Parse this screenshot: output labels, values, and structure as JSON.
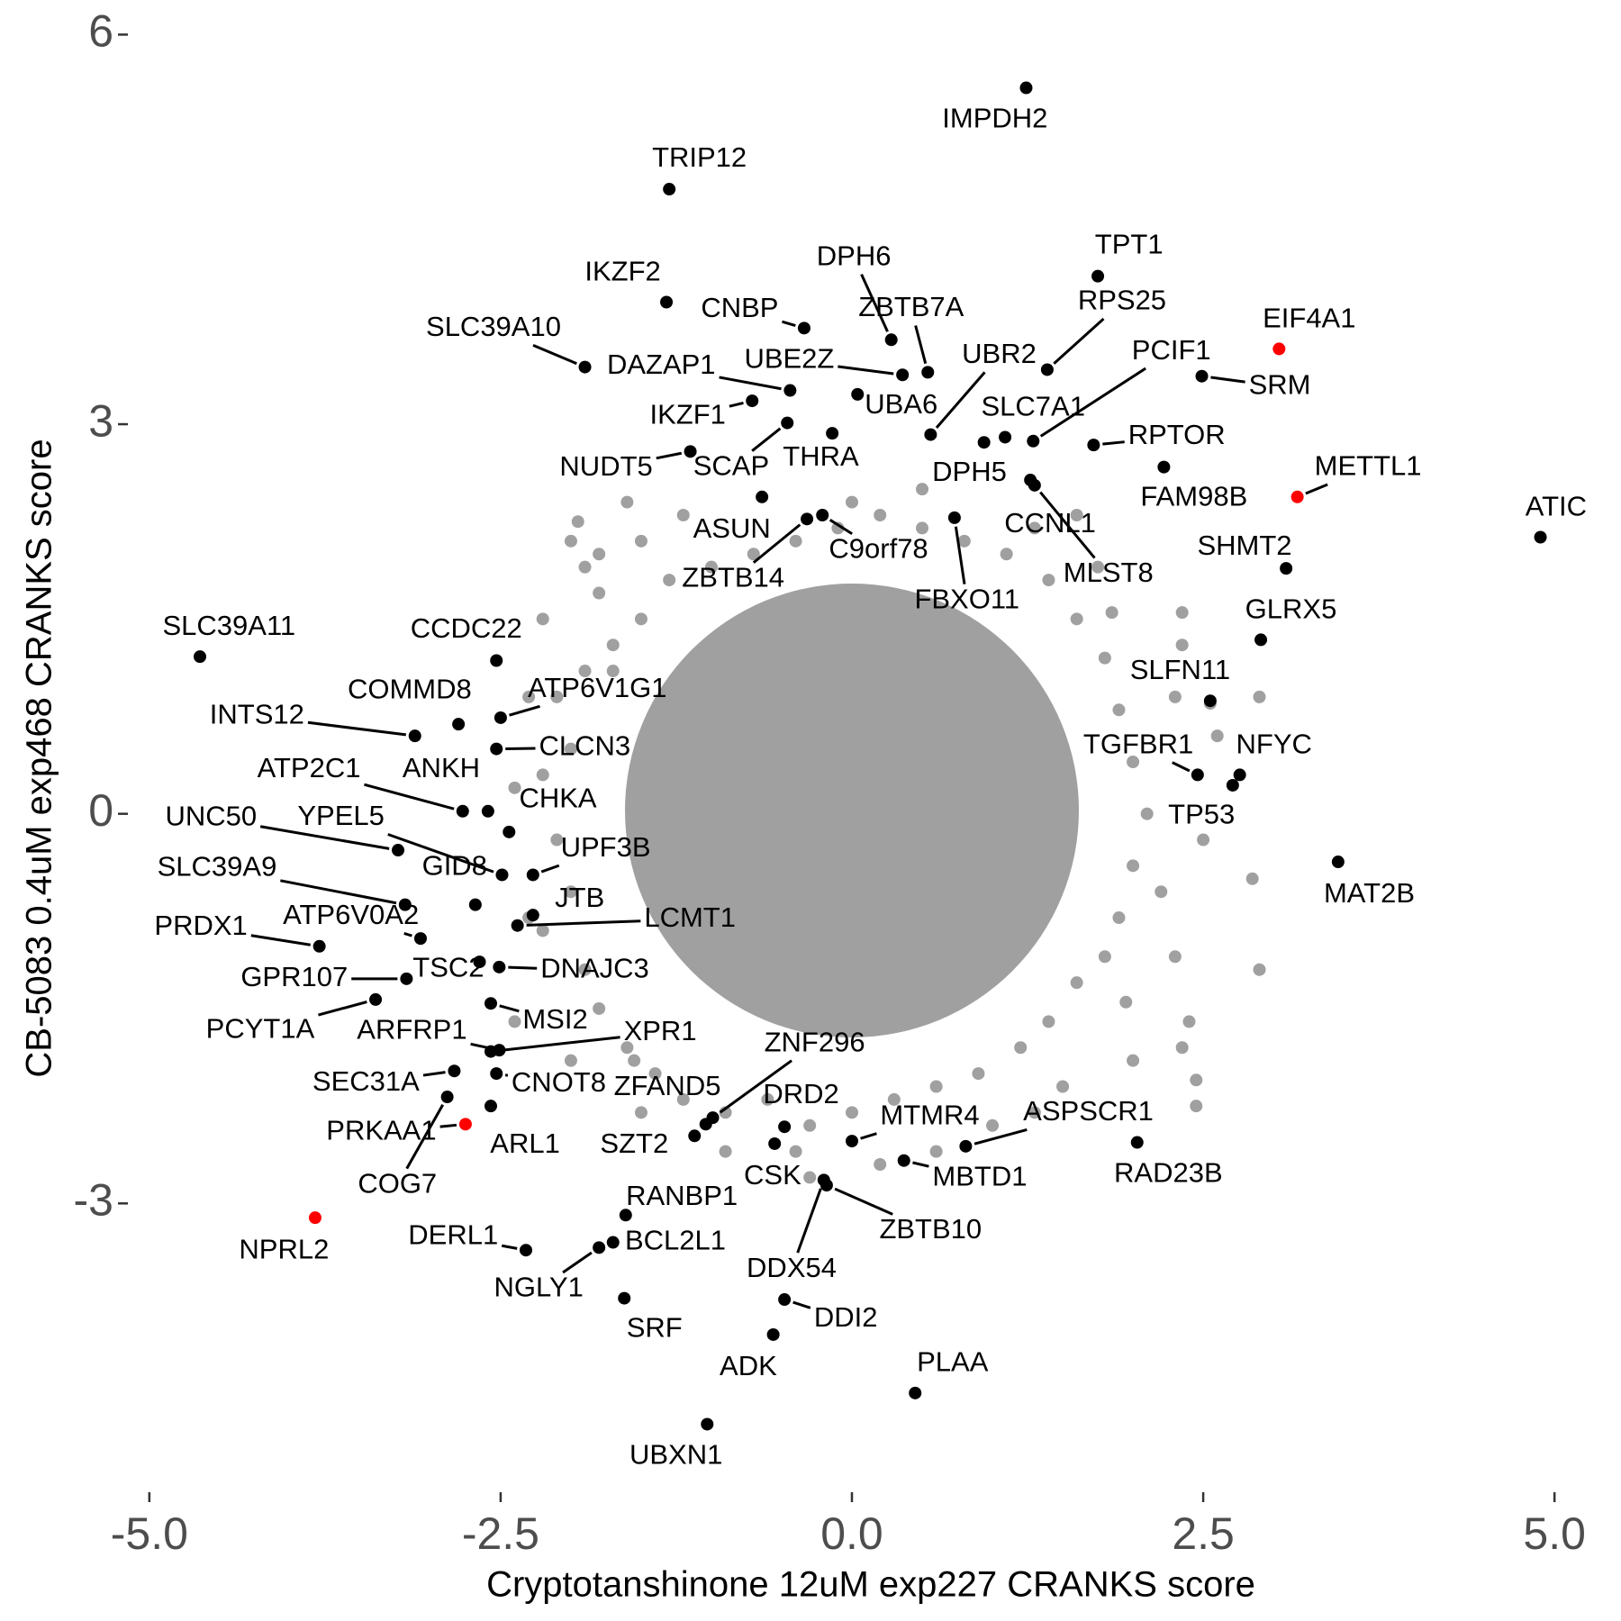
{
  "chart_data": {
    "type": "scatter",
    "x_label": "Cryptotanshinone 12uM exp227 CRANKS score",
    "y_label": "CB-5083 0.4uM exp468 CRANKS score",
    "xlim": [
      -5.14,
      5.14
    ],
    "ylim": [
      -5.21,
      6.1
    ],
    "xticks": [
      {
        "value": -5,
        "label": "-5.0"
      },
      {
        "value": -2.5,
        "label": "-2.5"
      },
      {
        "value": 0,
        "label": "0.0"
      },
      {
        "value": 2.5,
        "label": "2.5"
      },
      {
        "value": 5,
        "label": "5.0"
      }
    ],
    "yticks": [
      -3,
      0,
      3,
      6
    ],
    "grid": false,
    "background_points": {
      "color": "#a0a0a0",
      "x": [
        -1.9,
        -1.8,
        -1.5,
        -1.7,
        -1.9,
        -2.1,
        -2.0,
        -2.2,
        -2.1,
        -2.0,
        -2.2,
        -1.9,
        -1.8,
        -1.6,
        -1.4,
        -1.2,
        -0.9,
        -0.6,
        -0.3,
        0.0,
        0.3,
        0.6,
        0.9,
        1.2,
        1.4,
        1.6,
        1.8,
        1.9,
        2.0,
        2.1,
        2.0,
        1.9,
        1.8,
        1.6,
        1.4,
        1.1,
        0.8,
        0.5,
        0.2,
        -0.1,
        -0.4,
        -0.7,
        -1.0,
        -1.3,
        -1.8,
        -1.95,
        -1.5,
        1.3,
        1.85,
        2.35,
        2.3,
        2.6,
        2.2,
        2.3,
        2.5,
        2.4,
        2.35,
        2.45,
        2.0,
        1.5,
        1.0,
        0.6,
        0.2,
        -0.4,
        -0.9,
        -1.5,
        -2.0,
        -2.4,
        -2.3,
        -2.4,
        -2.3,
        -2.2,
        -2.0,
        -1.6,
        -1.2,
        0.5,
        0.0,
        1.6,
        1.75,
        2.35,
        2.55,
        2.9,
        2.85,
        2.9,
        2.45,
        -1.55,
        -0.3,
        1.3,
        -1.7,
        1.95
      ],
      "y": [
        1.9,
        2.0,
        1.5,
        1.3,
        1.1,
        0.9,
        0.5,
        0.3,
        -0.2,
        -0.6,
        -0.9,
        -1.2,
        -1.5,
        -1.8,
        -2.0,
        -2.2,
        -2.3,
        -2.2,
        -2.4,
        -2.3,
        -2.2,
        -2.1,
        -2.0,
        -1.8,
        -1.6,
        -1.3,
        -1.1,
        -0.8,
        -0.4,
        0.0,
        0.4,
        0.8,
        1.2,
        1.5,
        1.8,
        2.0,
        2.1,
        2.2,
        2.3,
        2.2,
        2.1,
        2.0,
        1.9,
        1.8,
        1.7,
        2.25,
        2.1,
        2.2,
        1.55,
        1.3,
        0.9,
        0.6,
        -0.6,
        -1.1,
        -0.2,
        -1.6,
        -1.8,
        -2.25,
        -1.9,
        -2.1,
        -2.4,
        -2.6,
        -2.7,
        -2.6,
        -2.6,
        -2.3,
        -1.9,
        -1.6,
        -0.8,
        0.2,
        0.9,
        1.5,
        2.1,
        2.4,
        2.3,
        2.5,
        2.4,
        2.3,
        1.9,
        1.55,
        0.85,
        0.9,
        -0.5,
        -1.2,
        -2.05,
        -1.9,
        -2.8,
        -2.3,
        1.1,
        -1.45
      ]
    },
    "points": [
      {
        "label": "IMPDH2",
        "x": 1.24,
        "y": 5.59,
        "color": "#000000"
      },
      {
        "label": "TRIP12",
        "x": -1.3,
        "y": 4.81,
        "color": "#000000"
      },
      {
        "label": "TPT1",
        "x": 1.75,
        "y": 4.14,
        "color": "#000000"
      },
      {
        "label": "IKZF2",
        "x": -1.32,
        "y": 3.94,
        "color": "#000000"
      },
      {
        "label": "CNBP",
        "x": -0.34,
        "y": 3.74,
        "color": "#000000"
      },
      {
        "label": "DPH6",
        "x": 0.28,
        "y": 3.65,
        "color": "#000000"
      },
      {
        "label": "ZBTB7A",
        "x": 0.54,
        "y": 3.4,
        "color": "#000000"
      },
      {
        "label": "RPS25",
        "x": 1.39,
        "y": 3.42,
        "color": "#000000"
      },
      {
        "label": "SLC39A10",
        "x": -1.9,
        "y": 3.44,
        "color": "#000000"
      },
      {
        "label": "EIF4A1",
        "x": 3.04,
        "y": 3.58,
        "color": "#ff0000"
      },
      {
        "label": "UBR2",
        "x": 0.56,
        "y": 2.92,
        "color": "#000000"
      },
      {
        "label": "UBE2Z",
        "x": 0.36,
        "y": 3.38,
        "color": "#000000"
      },
      {
        "label": "DAZAP1",
        "x": -0.44,
        "y": 3.26,
        "color": "#000000"
      },
      {
        "label": "PCIF1",
        "x": 1.29,
        "y": 2.87,
        "color": "#000000"
      },
      {
        "label": "SRM",
        "x": 2.49,
        "y": 3.37,
        "color": "#000000"
      },
      {
        "label": "IKZF1",
        "x": -0.71,
        "y": 3.18,
        "color": "#000000"
      },
      {
        "label": "UBA6",
        "x": 0.04,
        "y": 3.23,
        "color": "#000000"
      },
      {
        "label": "SLC7A1",
        "x": 1.09,
        "y": 2.9,
        "color": "#000000"
      },
      {
        "label": "RPTOR",
        "x": 1.72,
        "y": 2.84,
        "color": "#000000"
      },
      {
        "label": "NUDT5",
        "x": -1.15,
        "y": 2.79,
        "color": "#000000"
      },
      {
        "label": "SCAP",
        "x": -0.46,
        "y": 3.01,
        "color": "#000000"
      },
      {
        "label": "THRA",
        "x": -0.14,
        "y": 2.93,
        "color": "#000000"
      },
      {
        "label": "DPH5",
        "x": 0.94,
        "y": 2.86,
        "color": "#000000"
      },
      {
        "label": "FAM98B",
        "x": 2.22,
        "y": 2.67,
        "color": "#000000"
      },
      {
        "label": "METTL1",
        "x": 3.17,
        "y": 2.44,
        "color": "#ff0000"
      },
      {
        "label": "ATIC",
        "x": 4.9,
        "y": 2.13,
        "color": "#000000"
      },
      {
        "label": "CCNL1",
        "x": 1.27,
        "y": 2.57,
        "color": "#000000"
      },
      {
        "label": "ASUN",
        "x": -0.64,
        "y": 2.44,
        "color": "#000000"
      },
      {
        "label": "C9orf78",
        "x": -0.21,
        "y": 2.3,
        "color": "#000000"
      },
      {
        "label": "FBXO11",
        "x": 0.73,
        "y": 2.28,
        "color": "#000000"
      },
      {
        "label": "MLST8",
        "x": 1.3,
        "y": 2.53,
        "color": "#000000"
      },
      {
        "label": "ZBTB14",
        "x": -0.32,
        "y": 2.27,
        "color": "#000000"
      },
      {
        "label": "SHMT2",
        "x": 3.09,
        "y": 1.89,
        "color": "#000000"
      },
      {
        "label": "GLRX5",
        "x": 2.91,
        "y": 1.34,
        "color": "#000000"
      },
      {
        "label": "SLC39A11",
        "x": -4.64,
        "y": 1.21,
        "color": "#000000"
      },
      {
        "label": "CCDC22",
        "x": -2.53,
        "y": 1.18,
        "color": "#000000"
      },
      {
        "label": "SLFN11",
        "x": 2.55,
        "y": 0.87,
        "color": "#000000"
      },
      {
        "label": "COMMD8",
        "x": -2.8,
        "y": 0.69,
        "color": "#000000"
      },
      {
        "label": "ATP6V1G1",
        "x": -2.5,
        "y": 0.74,
        "color": "#000000"
      },
      {
        "label": "INTS12",
        "x": -3.11,
        "y": 0.6,
        "color": "#000000"
      },
      {
        "label": "CLCN3",
        "x": -2.53,
        "y": 0.5,
        "color": "#000000"
      },
      {
        "label": "NFYC",
        "x": 2.76,
        "y": 0.3,
        "color": "#000000"
      },
      {
        "label": "TGFBR1",
        "x": 2.46,
        "y": 0.3,
        "color": "#000000"
      },
      {
        "label": "ATP2C1",
        "x": -2.77,
        "y": 0.02,
        "color": "#000000"
      },
      {
        "label": "ANKH",
        "x": -2.59,
        "y": 0.02,
        "color": "#000000"
      },
      {
        "label": "TP53",
        "x": 2.71,
        "y": 0.22,
        "color": "#000000"
      },
      {
        "label": "CHKA",
        "x": -2.44,
        "y": -0.14,
        "color": "#000000"
      },
      {
        "label": "UNC50",
        "x": -3.23,
        "y": -0.28,
        "color": "#000000"
      },
      {
        "label": "YPEL5",
        "x": -2.49,
        "y": -0.47,
        "color": "#000000"
      },
      {
        "label": "UPF3B",
        "x": -2.27,
        "y": -0.47,
        "color": "#000000"
      },
      {
        "label": "GID8",
        "x": -2.68,
        "y": -0.7,
        "color": "#000000"
      },
      {
        "label": "SLC39A9",
        "x": -3.18,
        "y": -0.7,
        "color": "#000000"
      },
      {
        "label": "MAT2B",
        "x": 3.46,
        "y": -0.37,
        "color": "#000000"
      },
      {
        "label": "JTB",
        "x": -2.27,
        "y": -0.78,
        "color": "#000000"
      },
      {
        "label": "ATP6V0A2",
        "x": -3.07,
        "y": -0.96,
        "color": "#000000"
      },
      {
        "label": "LCMT1",
        "x": -2.38,
        "y": -0.86,
        "color": "#000000"
      },
      {
        "label": "PRDX1",
        "x": -3.79,
        "y": -1.02,
        "color": "#000000"
      },
      {
        "label": "TSC2",
        "x": -2.65,
        "y": -1.14,
        "color": "#000000"
      },
      {
        "label": "DNAJC3",
        "x": -2.51,
        "y": -1.18,
        "color": "#000000"
      },
      {
        "label": "GPR107",
        "x": -3.17,
        "y": -1.27,
        "color": "#000000"
      },
      {
        "label": "MSI2",
        "x": -2.57,
        "y": -1.46,
        "color": "#000000"
      },
      {
        "label": "PCYT1A",
        "x": -3.39,
        "y": -1.43,
        "color": "#000000"
      },
      {
        "label": "ARFRP1",
        "x": -2.51,
        "y": -1.82,
        "color": "#000000"
      },
      {
        "label": "XPR1",
        "x": -2.57,
        "y": -1.83,
        "color": "#000000"
      },
      {
        "label": "ZNF296",
        "x": -0.99,
        "y": -2.34,
        "color": "#000000"
      },
      {
        "label": "SEC31A",
        "x": -2.83,
        "y": -1.98,
        "color": "#000000"
      },
      {
        "label": "CNOT8",
        "x": -2.53,
        "y": -2.0,
        "color": "#000000"
      },
      {
        "label": "ZFAND5",
        "x": -1.04,
        "y": -2.39,
        "color": "#000000"
      },
      {
        "label": "DRD2",
        "x": -0.48,
        "y": -2.41,
        "color": "#000000"
      },
      {
        "label": "PRKAA1",
        "x": -2.75,
        "y": -2.39,
        "color": "#ff0000"
      },
      {
        "label": "MTMR4",
        "x": 0.0,
        "y": -2.52,
        "color": "#000000"
      },
      {
        "label": "ASPSCR1",
        "x": 0.81,
        "y": -2.56,
        "color": "#000000"
      },
      {
        "label": "ARL1",
        "x": -2.57,
        "y": -2.25,
        "color": "#000000"
      },
      {
        "label": "SZT2",
        "x": -1.12,
        "y": -2.48,
        "color": "#000000"
      },
      {
        "label": "RAD23B",
        "x": 2.03,
        "y": -2.53,
        "color": "#000000"
      },
      {
        "label": "CSK",
        "x": -0.55,
        "y": -2.54,
        "color": "#000000"
      },
      {
        "label": "MBTD1",
        "x": 0.37,
        "y": -2.67,
        "color": "#000000"
      },
      {
        "label": "COG7",
        "x": -2.88,
        "y": -2.18,
        "color": "#000000"
      },
      {
        "label": "RANBP1",
        "x": -1.61,
        "y": -3.09,
        "color": "#000000"
      },
      {
        "label": "NPRL2",
        "x": -3.82,
        "y": -3.11,
        "color": "#ff0000"
      },
      {
        "label": "ZBTB10",
        "x": -0.18,
        "y": -2.86,
        "color": "#000000"
      },
      {
        "label": "DERL1",
        "x": -2.32,
        "y": -3.36,
        "color": "#000000"
      },
      {
        "label": "BCL2L1",
        "x": -1.7,
        "y": -3.3,
        "color": "#000000"
      },
      {
        "label": "NGLY1",
        "x": -1.8,
        "y": -3.34,
        "color": "#000000"
      },
      {
        "label": "DDX54",
        "x": -0.2,
        "y": -2.82,
        "color": "#000000"
      },
      {
        "label": "DDI2",
        "x": -0.48,
        "y": -3.74,
        "color": "#000000"
      },
      {
        "label": "SRF",
        "x": -1.62,
        "y": -3.73,
        "color": "#000000"
      },
      {
        "label": "ADK",
        "x": -0.56,
        "y": -4.01,
        "color": "#000000"
      },
      {
        "label": "PLAA",
        "x": 0.45,
        "y": -4.46,
        "color": "#000000"
      },
      {
        "label": "UBXN1",
        "x": -1.03,
        "y": -4.7,
        "color": "#000000"
      }
    ]
  }
}
